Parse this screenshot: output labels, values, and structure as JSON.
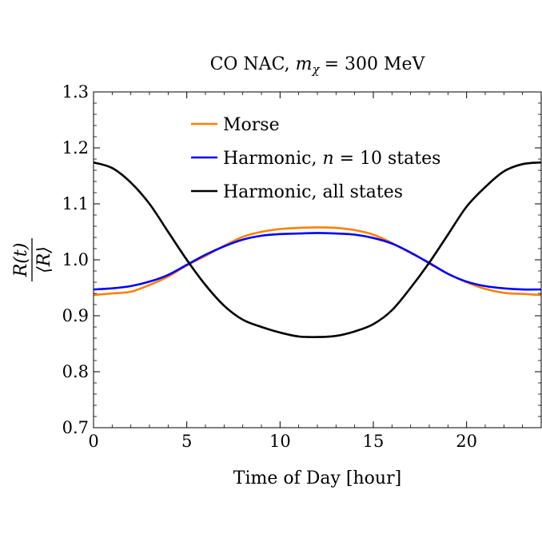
{
  "chart_data": {
    "type": "line",
    "title_prefix": "CO NAC,",
    "title_var": "m",
    "title_sub": "χ",
    "title_value": "= 300 MeV",
    "title": "CO NAC, m_χ = 300 MeV",
    "xlabel": "Time of Day [hour]",
    "ylabel_num": "R(t)",
    "ylabel_den": "⟨R⟩",
    "ylabel": "R(t)/⟨R⟩",
    "xlim": [
      0,
      24
    ],
    "ylim": [
      0.7,
      1.3
    ],
    "x_ticks": [
      "0",
      "5",
      "10",
      "15",
      "20"
    ],
    "x_tick_values": [
      0,
      5,
      10,
      15,
      20
    ],
    "y_ticks": [
      "0.7",
      "0.8",
      "0.9",
      "1.0",
      "1.1",
      "1.2",
      "1.3"
    ],
    "y_tick_values": [
      0.7,
      0.8,
      0.9,
      1.0,
      1.1,
      1.2,
      1.3
    ],
    "legend_position": "top-center",
    "x": [
      0,
      1,
      2,
      3,
      4,
      5,
      6,
      7,
      8,
      9,
      10,
      11,
      12,
      13,
      14,
      15,
      16,
      17,
      18,
      19,
      20,
      21,
      22,
      23,
      24
    ],
    "series": [
      {
        "name": "Morse",
        "legend_label": "Morse",
        "color": "#ff7f00",
        "values": [
          0.937,
          0.94,
          0.943,
          0.955,
          0.97,
          0.99,
          1.007,
          1.025,
          1.041,
          1.05,
          1.055,
          1.057,
          1.058,
          1.057,
          1.053,
          1.045,
          1.03,
          1.012,
          0.995,
          0.975,
          0.96,
          0.948,
          0.941,
          0.939,
          0.937
        ]
      },
      {
        "name": "Harmonic, n = 10 states",
        "legend_prefix": "Harmonic, ",
        "legend_var": "n",
        "legend_suffix": " = 10 states",
        "color": "#0000ff",
        "values": [
          0.947,
          0.949,
          0.953,
          0.961,
          0.973,
          0.991,
          1.009,
          1.024,
          1.036,
          1.043,
          1.046,
          1.047,
          1.048,
          1.047,
          1.045,
          1.039,
          1.029,
          1.013,
          0.994,
          0.975,
          0.961,
          0.953,
          0.949,
          0.947,
          0.947
        ]
      },
      {
        "name": "Harmonic, all states",
        "legend_label": "Harmonic, all states",
        "color": "#000000",
        "values": [
          1.174,
          1.164,
          1.138,
          1.1,
          1.05,
          1.0,
          0.955,
          0.918,
          0.893,
          0.88,
          0.87,
          0.863,
          0.862,
          0.864,
          0.872,
          0.885,
          0.91,
          0.95,
          0.995,
          1.045,
          1.095,
          1.13,
          1.158,
          1.171,
          1.174
        ]
      }
    ]
  }
}
